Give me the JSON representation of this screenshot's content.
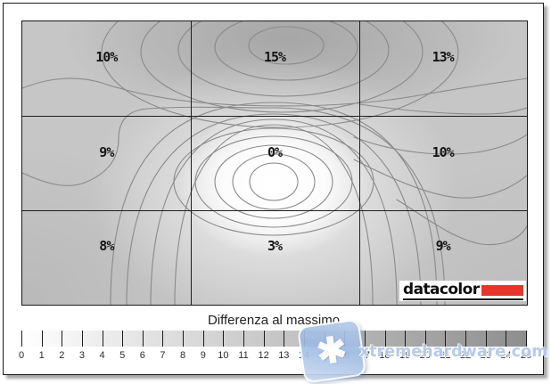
{
  "report": {
    "map": {
      "cells": [
        "10%",
        "15%",
        "13%",
        "9%",
        "0%",
        "10%",
        "8%",
        "3%",
        "9%"
      ]
    },
    "logo": {
      "text": "datacolor",
      "accent_color": "#e8352c"
    },
    "scale": {
      "title": "Differenza al massimo",
      "ticks": [
        "0",
        "1",
        "2",
        "3",
        "4",
        "5",
        "6",
        "7",
        "8",
        "9",
        "10",
        "11",
        "12",
        "13",
        "14",
        "15",
        "16",
        "17",
        "18",
        "19",
        "20",
        "21",
        "22",
        "23",
        "24",
        "25"
      ]
    },
    "watermark": {
      "text": "xtremehardware.com",
      "icon_glyph": "✱"
    }
  },
  "chart_data": {
    "type": "heatmap",
    "subtype": "contour-uniformity-map",
    "grid_rows": 3,
    "grid_cols": 3,
    "categories_rows": [
      "top",
      "middle",
      "bottom"
    ],
    "categories_cols": [
      "left",
      "center",
      "right"
    ],
    "values_percent_difference": [
      [
        10,
        15,
        13
      ],
      [
        9,
        0,
        10
      ],
      [
        8,
        3,
        9
      ]
    ],
    "min_cell": {
      "row": "middle",
      "col": "center",
      "value": 0
    },
    "max_cell": {
      "row": "top",
      "col": "center",
      "value": 15
    },
    "colorbar": {
      "label": "Differenza al massimo",
      "min": 0,
      "max": 25,
      "step": 1,
      "colors": [
        "#ffffff",
        "#8e8e8e"
      ]
    },
    "grid_lines": "3x3 black dividers",
    "contour_color": "#8a8a8a"
  }
}
